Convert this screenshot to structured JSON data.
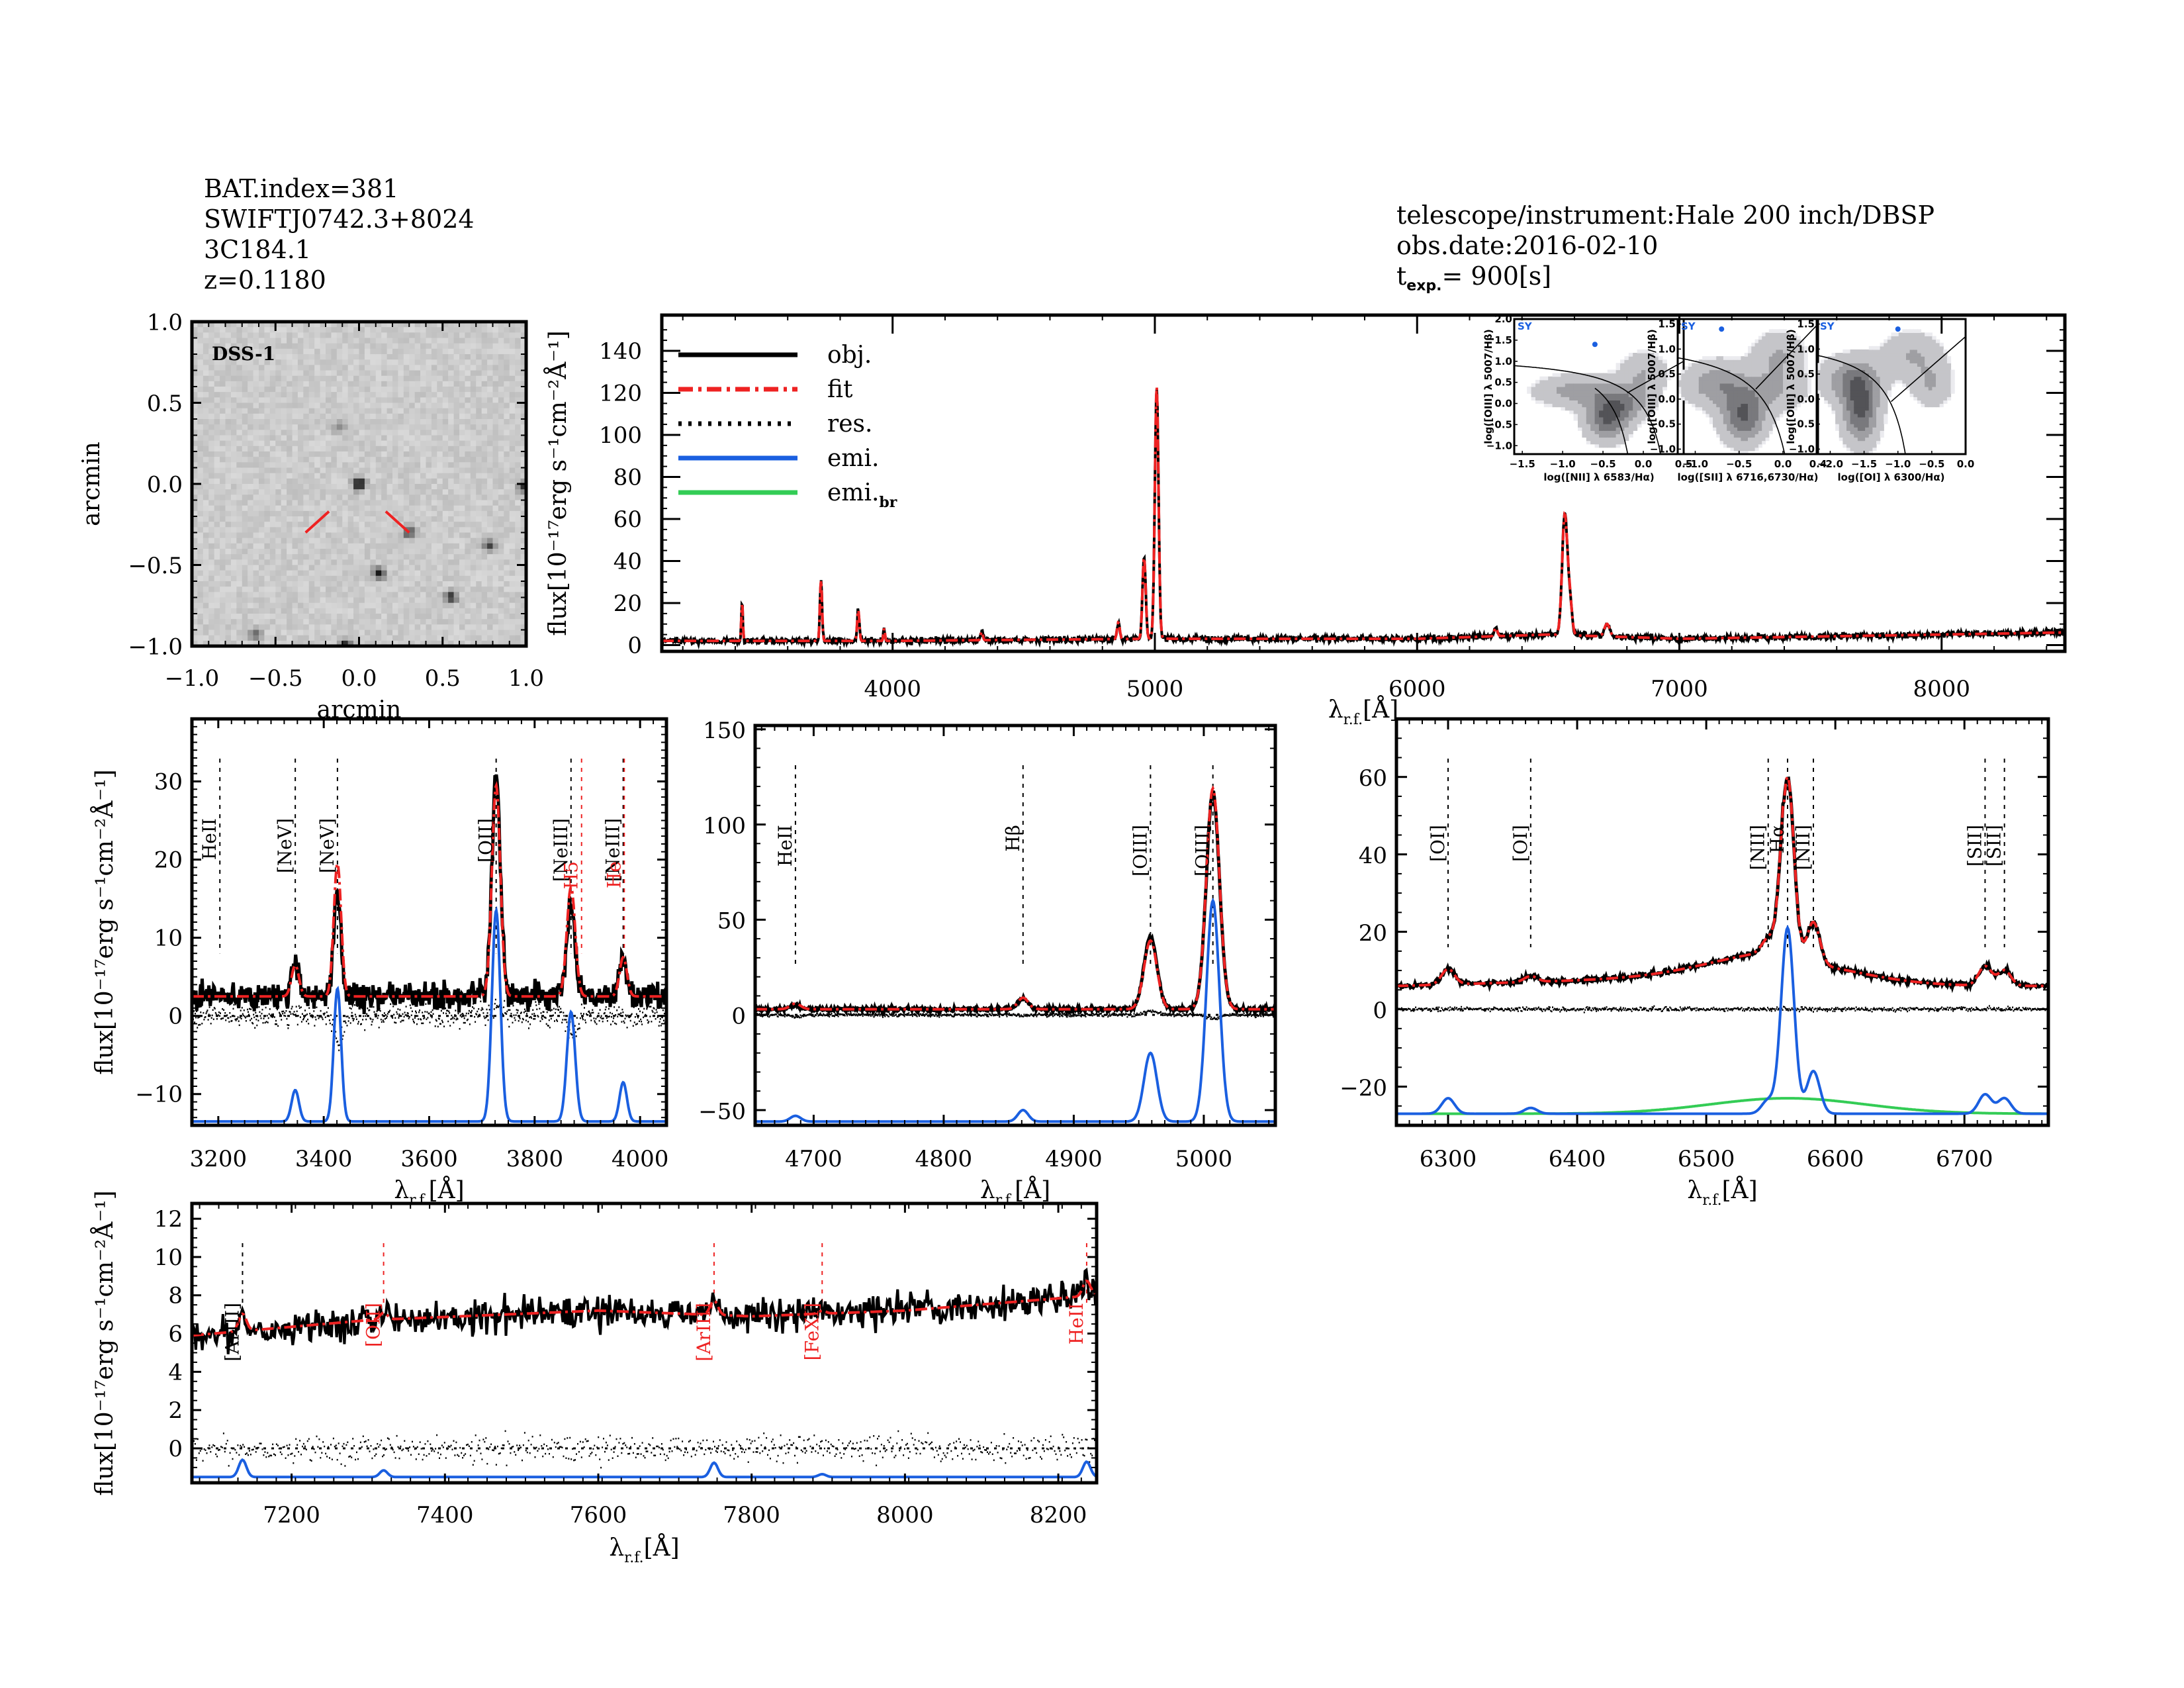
{
  "header_left": {
    "bat_index": "BAT.index=381",
    "swift_id": "SWIFTJ0742.3+8024",
    "name": "3C184.1",
    "redshift": "z=0.1180"
  },
  "header_right": {
    "instrument": "telescope/instrument:Hale 200 inch/DBSP",
    "obs_date": "obs.date:2016-02-10",
    "texp_prefix": "t",
    "texp_sub": "exp.",
    "texp_value": "= 900[s]"
  },
  "colors": {
    "obj": "#000000",
    "fit": "#ee2222",
    "res": "#000000",
    "emi": "#1a5fe0",
    "emi_br": "#33cc55",
    "marker_red": "#ee2222"
  },
  "chart_data": [
    {
      "id": "image",
      "type": "heatmap",
      "title": "DSS-1",
      "xlabel": "arcmin",
      "ylabel": "arcmin",
      "xlim": [
        -1.0,
        1.0
      ],
      "ylim": [
        -1.0,
        1.0
      ],
      "xticks": [
        "-1.0",
        "-0.5",
        "0.0",
        "0.5",
        "1.0"
      ],
      "yticks": [
        "-1.0",
        "-0.5",
        "0.0",
        "0.5",
        "1.0"
      ],
      "sources": [
        [
          0.0,
          0.0,
          1.0
        ],
        [
          0.3,
          -0.3,
          0.6
        ],
        [
          0.12,
          -0.55,
          0.8
        ],
        [
          0.55,
          -0.7,
          0.7
        ],
        [
          0.78,
          -0.38,
          0.6
        ],
        [
          -0.62,
          -0.93,
          0.5
        ],
        [
          -0.08,
          -1.0,
          0.9
        ],
        [
          -0.12,
          0.35,
          0.3
        ],
        [
          0.99,
          -0.02,
          0.7
        ]
      ]
    },
    {
      "id": "full",
      "type": "line",
      "xlabel": "λr.f.[Å]",
      "ylabel": "flux[10⁻¹⁷erg s⁻¹cm⁻²Å⁻¹]",
      "xlim": [
        3120,
        8470
      ],
      "ylim": [
        -3,
        157
      ],
      "xticks": [
        4000,
        5000,
        6000,
        7000,
        8000
      ],
      "yticks": [
        0,
        20,
        40,
        60,
        80,
        100,
        120,
        140
      ],
      "legend": {
        "placement": "top-left",
        "entries": [
          {
            "label": "obj.",
            "style": "solid",
            "color": "obj"
          },
          {
            "label": "fit",
            "style": "dashdot",
            "color": "fit"
          },
          {
            "label": "res.",
            "style": "dotted",
            "color": "res"
          },
          {
            "label": "emi.",
            "style": "solid",
            "color": "emi"
          },
          {
            "label": "emi.",
            "sub": "br",
            "style": "solid",
            "color": "emi_br"
          }
        ]
      },
      "continuum": [
        [
          3120,
          2
        ],
        [
          4000,
          2
        ],
        [
          5000,
          3
        ],
        [
          6000,
          3
        ],
        [
          6500,
          5
        ],
        [
          7000,
          3
        ],
        [
          8000,
          5
        ],
        [
          8470,
          6
        ]
      ],
      "lines": [
        [
          3426,
          18,
          3
        ],
        [
          3727,
          29,
          4
        ],
        [
          3869,
          15,
          4
        ],
        [
          3968,
          6,
          3
        ],
        [
          4340,
          4,
          4
        ],
        [
          4861,
          8,
          5
        ],
        [
          4959,
          39,
          6
        ],
        [
          5007,
          120,
          7
        ],
        [
          6300,
          4,
          6
        ],
        [
          6563,
          57,
          10
        ],
        [
          6583,
          15,
          8
        ],
        [
          6724,
          6,
          10
        ]
      ]
    },
    {
      "id": "bpt1",
      "type": "scatter",
      "xlabel": "log([NII] λ 6583/Hα)",
      "ylabel": "log([OIII] λ 5007/Hβ)",
      "xlim": [
        -1.6,
        0.5
      ],
      "ylim": [
        -1.2,
        2.0
      ],
      "xticks": [
        "-1.5",
        "-1.0",
        "-0.5",
        "0.0",
        "0.5"
      ],
      "yticks": [
        "-1.0",
        "-0.5",
        "0.0",
        "0.5",
        "1.0",
        "1.5",
        "2.0"
      ],
      "class_label": "SY",
      "point": [
        -0.6,
        1.4
      ]
    },
    {
      "id": "bpt2",
      "type": "scatter",
      "xlabel": "log([SII] λ 6716,6730/Hα)",
      "ylabel": "log([OIII] λ 5007/Hβ)",
      "xlim": [
        -1.2,
        0.4
      ],
      "ylim": [
        -1.1,
        1.6
      ],
      "xticks": [
        "-1.0",
        "-0.5",
        "0.0",
        "0.4"
      ],
      "yticks": [
        "-1.0",
        "-0.5",
        "0.0",
        "0.5",
        "1.0",
        "1.5"
      ],
      "class_label": "SY",
      "point": [
        -0.7,
        1.4
      ]
    },
    {
      "id": "bpt3",
      "type": "scatter",
      "xlabel": "log([OI] λ 6300/Hα)",
      "ylabel": "log([OIII] λ 5007/Hβ)",
      "xlim": [
        -2.2,
        0.0
      ],
      "ylim": [
        -1.1,
        1.6
      ],
      "xticks": [
        "-2.0",
        "-1.5",
        "-1.0",
        "-0.5",
        "0.0"
      ],
      "yticks": [
        "-1.0",
        "-0.5",
        "0.0",
        "0.5",
        "1.0",
        "1.5"
      ],
      "class_label": "SY",
      "point": [
        -1.0,
        1.4
      ]
    },
    {
      "id": "zoom1",
      "type": "line",
      "xlabel": "λr.f.[Å]",
      "ylabel": "flux[10⁻¹⁷erg s⁻¹cm⁻²Å⁻¹]",
      "xlim": [
        3150,
        4050
      ],
      "ylim": [
        -14,
        38
      ],
      "xticks": [
        3200,
        3400,
        3600,
        3800,
        4000
      ],
      "yticks": [
        -10,
        0,
        10,
        20,
        30
      ],
      "continuum_level": 2.5,
      "emi_offset": -13.5,
      "lines": [
        [
          3203,
          0,
          6,
          0
        ],
        [
          3346,
          4,
          7,
          4.5
        ],
        [
          3426,
          17,
          7,
          13.5
        ],
        [
          3727,
          27,
          8,
          28
        ],
        [
          3869,
          14,
          8,
          11.5
        ],
        [
          3968,
          5,
          7,
          5
        ]
      ],
      "markers": [
        {
          "label": "HeII",
          "x": 3203,
          "color": "black"
        },
        {
          "label": "[NeV]",
          "x": 3346,
          "color": "black"
        },
        {
          "label": "[NeV]",
          "x": 3426,
          "color": "black"
        },
        {
          "label": "[OII]",
          "x": 3727,
          "color": "black"
        },
        {
          "label": "[NeIII]",
          "x": 3869,
          "color": "black"
        },
        {
          "label": "H5",
          "x": 3889,
          "color": "red"
        },
        {
          "label": "[NeIII]",
          "x": 3968,
          "color": "black"
        },
        {
          "label": "He",
          "x": 3970,
          "color": "red"
        }
      ]
    },
    {
      "id": "zoom2",
      "type": "line",
      "xlabel": "λr.f.[Å]",
      "ylabel": "",
      "xlim": [
        4655,
        5055
      ],
      "ylim": [
        -58,
        152
      ],
      "xticks": [
        4700,
        4800,
        4900,
        5000
      ],
      "yticks": [
        -50,
        0,
        50,
        100,
        150
      ],
      "continuum_level": 3,
      "emi_offset": -56,
      "lines": [
        [
          4686,
          3,
          4,
          2
        ],
        [
          4861,
          6,
          4,
          5.5
        ],
        [
          4959,
          36,
          5,
          38
        ],
        [
          5007,
          116,
          5,
          114
        ]
      ],
      "markers": [
        {
          "label": "HeII",
          "x": 4686,
          "color": "black"
        },
        {
          "label": "Hβ",
          "x": 4861,
          "color": "black"
        },
        {
          "label": "[OIII]",
          "x": 4959,
          "color": "black"
        },
        {
          "label": "[OIII]",
          "x": 5007,
          "color": "black"
        }
      ]
    },
    {
      "id": "zoom3",
      "type": "line",
      "xlabel": "λr.f.[Å]",
      "ylabel": "",
      "xlim": [
        6260,
        6765
      ],
      "ylim": [
        -30,
        75
      ],
      "xticks": [
        6300,
        6400,
        6500,
        6600,
        6700
      ],
      "yticks": [
        -20,
        0,
        20,
        40,
        60
      ],
      "continuum_level": 6,
      "emi_offset": -27,
      "broad": {
        "center": 6563,
        "height": 4,
        "sigma": 60
      },
      "lines": [
        [
          6300,
          4,
          5,
          4
        ],
        [
          6364,
          1.5,
          5,
          1.5
        ],
        [
          6548,
          3.5,
          5,
          3.5
        ],
        [
          6563,
          48,
          5,
          48
        ],
        [
          6583,
          11,
          5,
          11
        ],
        [
          6716,
          5,
          5,
          5
        ],
        [
          6731,
          4,
          5,
          4
        ]
      ],
      "markers": [
        {
          "label": "[OI]",
          "x": 6300,
          "color": "black"
        },
        {
          "label": "[OI]",
          "x": 6364,
          "color": "black"
        },
        {
          "label": "[NII]",
          "x": 6548,
          "color": "black"
        },
        {
          "label": "Hα",
          "x": 6563,
          "color": "black"
        },
        {
          "label": "[NII]",
          "x": 6583,
          "color": "black"
        },
        {
          "label": "[SII]",
          "x": 6716,
          "color": "black"
        },
        {
          "label": "[SII]",
          "x": 6731,
          "color": "black"
        }
      ]
    },
    {
      "id": "zoom4",
      "type": "line",
      "xlabel": "λr.f.[Å]",
      "ylabel": "flux[10⁻¹⁷erg s⁻¹cm⁻²Å⁻¹]",
      "xlim": [
        7070,
        8250
      ],
      "ylim": [
        -1.8,
        12.8
      ],
      "xticks": [
        7200,
        7400,
        7600,
        7800,
        8000,
        8200
      ],
      "yticks": [
        0,
        2,
        4,
        6,
        8,
        10,
        12
      ],
      "continuum": [
        [
          7070,
          5.9
        ],
        [
          7300,
          6.7
        ],
        [
          7600,
          7.2
        ],
        [
          7800,
          6.9
        ],
        [
          8000,
          7.2
        ],
        [
          8250,
          8.0
        ]
      ],
      "emi_offset": -1.5,
      "lines": [
        [
          7136,
          0.9,
          5
        ],
        [
          7320,
          0.35,
          5
        ],
        [
          7751,
          0.75,
          5
        ],
        [
          7892,
          0.15,
          5
        ],
        [
          8237,
          0.8,
          5
        ]
      ],
      "markers": [
        {
          "label": "[ArIII]",
          "x": 7136,
          "color": "black"
        },
        {
          "label": "[OII]",
          "x": 7320,
          "color": "red"
        },
        {
          "label": "[ArIII]",
          "x": 7751,
          "color": "red"
        },
        {
          "label": "[FeXI]",
          "x": 7892,
          "color": "red"
        },
        {
          "label": "HeII",
          "x": 8237,
          "color": "red"
        }
      ]
    }
  ]
}
